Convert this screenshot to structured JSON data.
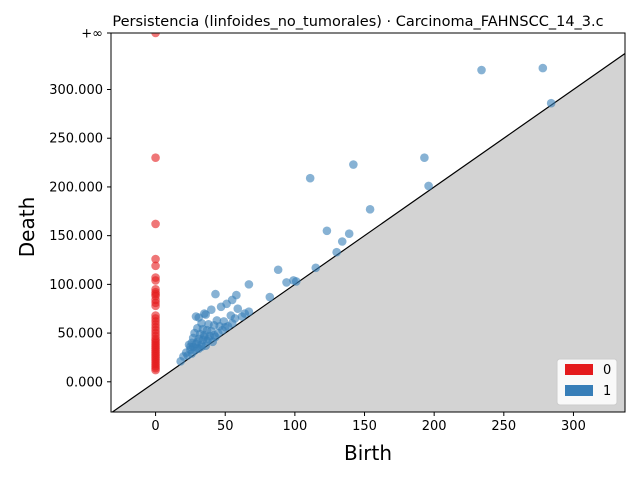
{
  "chart_data": {
    "type": "scatter",
    "title": "Persistencia (linfoides_no_tumorales) · Carcinoma_FAHNSCC_14_3.c",
    "xlabel": "Birth",
    "ylabel": "Death",
    "xlim": [
      -32,
      337
    ],
    "ylim": [
      -31,
      358
    ],
    "x_ticks": [
      0,
      50,
      100,
      150,
      200,
      250,
      300
    ],
    "y_ticks": [
      0,
      50,
      100,
      150,
      200,
      250,
      300
    ],
    "y_tick_labels": [
      "0.000",
      "50.000",
      "100.000",
      "150.000",
      "200.000",
      "250.000",
      "300.000"
    ],
    "infinity_level": 358,
    "infinity_label": "+∞",
    "diagonal": "y = x",
    "legend_position": "lower-right",
    "series": [
      {
        "name": "0",
        "color": "#e41a1c",
        "points": [
          [
            0,
            358
          ],
          [
            0,
            230
          ],
          [
            0,
            162
          ],
          [
            0,
            126
          ],
          [
            0,
            119
          ],
          [
            0,
            107
          ],
          [
            0,
            104
          ],
          [
            0,
            95
          ],
          [
            0,
            92
          ],
          [
            0,
            90
          ],
          [
            0,
            88
          ],
          [
            0,
            84
          ],
          [
            0,
            81
          ],
          [
            0,
            78
          ],
          [
            0,
            68
          ],
          [
            0,
            65
          ],
          [
            0,
            62
          ],
          [
            0,
            59
          ],
          [
            0,
            56
          ],
          [
            0,
            53
          ],
          [
            0,
            50
          ],
          [
            0,
            47
          ],
          [
            0,
            44
          ],
          [
            0,
            42
          ],
          [
            0,
            40
          ],
          [
            0,
            38
          ],
          [
            0,
            36
          ],
          [
            0,
            34
          ],
          [
            0,
            32
          ],
          [
            0,
            30
          ],
          [
            0,
            28
          ],
          [
            0,
            26
          ],
          [
            0,
            24
          ],
          [
            0,
            22
          ],
          [
            0,
            20
          ],
          [
            0,
            18
          ],
          [
            0,
            16
          ],
          [
            0,
            14
          ],
          [
            0,
            12
          ]
        ]
      },
      {
        "name": "1",
        "color": "#377eb8",
        "points": [
          [
            278,
            322
          ],
          [
            234,
            320
          ],
          [
            284,
            286
          ],
          [
            193,
            230
          ],
          [
            142,
            223
          ],
          [
            111,
            209
          ],
          [
            196,
            201
          ],
          [
            154,
            177
          ],
          [
            123,
            155
          ],
          [
            139,
            152
          ],
          [
            134,
            144
          ],
          [
            130,
            133
          ],
          [
            115,
            117
          ],
          [
            88,
            115
          ],
          [
            99,
            104
          ],
          [
            94,
            102
          ],
          [
            101,
            103
          ],
          [
            82,
            87
          ],
          [
            67,
            100
          ],
          [
            43,
            90
          ],
          [
            58,
            89
          ],
          [
            55,
            84
          ],
          [
            51,
            80
          ],
          [
            40,
            74
          ],
          [
            47,
            77
          ],
          [
            59,
            75
          ],
          [
            35,
            70
          ],
          [
            36,
            69
          ],
          [
            67,
            72
          ],
          [
            64,
            70
          ],
          [
            62,
            67
          ],
          [
            54,
            68
          ],
          [
            57,
            65
          ],
          [
            29,
            67
          ],
          [
            31,
            66
          ],
          [
            44,
            63
          ],
          [
            49,
            62
          ],
          [
            33,
            60
          ],
          [
            38,
            59
          ],
          [
            42,
            58
          ],
          [
            46,
            57
          ],
          [
            50,
            56
          ],
          [
            30,
            55
          ],
          [
            34,
            54
          ],
          [
            37,
            53
          ],
          [
            40,
            52
          ],
          [
            28,
            50
          ],
          [
            32,
            49
          ],
          [
            35,
            48
          ],
          [
            39,
            47
          ],
          [
            43,
            46
          ],
          [
            27,
            45
          ],
          [
            31,
            44
          ],
          [
            34,
            43
          ],
          [
            37,
            42
          ],
          [
            41,
            41
          ],
          [
            26,
            40
          ],
          [
            29,
            39
          ],
          [
            33,
            38
          ],
          [
            36,
            37
          ],
          [
            24,
            38
          ],
          [
            27,
            36
          ],
          [
            30,
            35
          ],
          [
            25,
            33
          ],
          [
            28,
            32
          ],
          [
            22,
            30
          ],
          [
            20,
            26
          ],
          [
            18,
            21
          ],
          [
            23,
            27
          ],
          [
            26,
            29
          ],
          [
            31,
            34
          ],
          [
            33,
            36
          ],
          [
            45,
            50
          ],
          [
            48,
            53
          ],
          [
            52,
            57
          ],
          [
            55,
            60
          ],
          [
            38,
            44
          ],
          [
            42,
            48
          ],
          [
            30,
            41
          ],
          [
            25,
            36
          ],
          [
            35,
            46
          ]
        ]
      }
    ]
  }
}
